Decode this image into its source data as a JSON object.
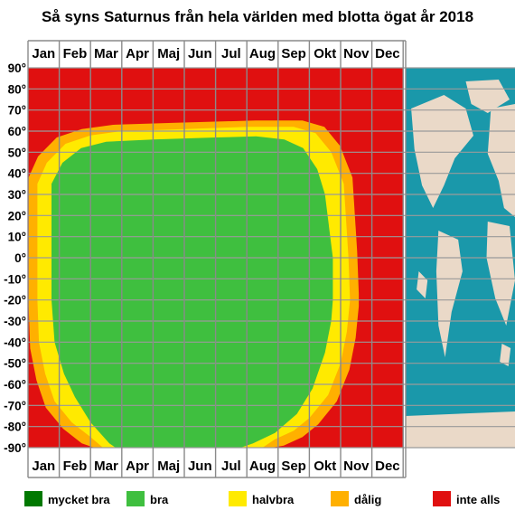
{
  "chart_data": {
    "type": "heatmap",
    "title": "Så syns Saturnus från hela världen med blotta ögat år 2018",
    "months": [
      "Jan",
      "Feb",
      "Mar",
      "Apr",
      "Maj",
      "Jun",
      "Jul",
      "Aug",
      "Sep",
      "Okt",
      "Nov",
      "Dec"
    ],
    "lat_ticks": [
      "90°",
      "80°",
      "70°",
      "60°",
      "50°",
      "40°",
      "30°",
      "20°",
      "10°",
      "0°",
      "-10°",
      "-20°",
      "-30°",
      "-40°",
      "-50°",
      "-60°",
      "-70°",
      "-80°",
      "-90°"
    ],
    "x_range_months": [
      1,
      13
    ],
    "y_range_lat": [
      -90,
      90
    ],
    "grid": true,
    "categories": [
      {
        "key": "mycket_bra",
        "label": "mycket bra",
        "color": "#007800"
      },
      {
        "key": "bra",
        "label": "bra",
        "color": "#3fbf3f"
      },
      {
        "key": "halvbra",
        "label": "halvbra",
        "color": "#ffea00"
      },
      {
        "key": "dalig",
        "label": "dålig",
        "color": "#ffb000"
      },
      {
        "key": "inte_alls",
        "label": "inte alls",
        "color": "#e01010"
      }
    ],
    "boundary_note_units": "month (1=Jan 1, 13=end of Dec) vs latitude in degrees",
    "boundaries": {
      "yellow_north": [
        [
          1.3,
          35
        ],
        [
          1.6,
          45
        ],
        [
          2.2,
          54
        ],
        [
          3,
          58
        ],
        [
          4,
          60
        ],
        [
          6,
          61
        ],
        [
          8,
          62
        ],
        [
          9.5,
          62
        ],
        [
          10.2,
          59
        ],
        [
          10.7,
          50
        ],
        [
          11.1,
          35
        ],
        [
          11.25,
          0
        ],
        [
          11.3,
          -20
        ]
      ],
      "green_north": [
        [
          1.75,
          35
        ],
        [
          2.1,
          45
        ],
        [
          2.7,
          52
        ],
        [
          3.5,
          55
        ],
        [
          5,
          56
        ],
        [
          7,
          57
        ],
        [
          8.3,
          57.5
        ],
        [
          9.2,
          56
        ],
        [
          9.8,
          52
        ],
        [
          10.25,
          42
        ],
        [
          10.5,
          30
        ],
        [
          10.75,
          0
        ],
        [
          10.75,
          -20
        ]
      ],
      "yellow_south": [
        [
          1.3,
          -20
        ],
        [
          1.35,
          -40
        ],
        [
          1.55,
          -55
        ],
        [
          1.85,
          -68
        ],
        [
          2.4,
          -78
        ],
        [
          3,
          -85
        ],
        [
          3.4,
          -90
        ],
        [
          8.5,
          -90
        ],
        [
          8.9,
          -86
        ],
        [
          9.5,
          -82
        ],
        [
          10,
          -76
        ],
        [
          10.6,
          -65
        ],
        [
          11.0,
          -50
        ],
        [
          11.2,
          -35
        ],
        [
          11.3,
          -20
        ]
      ],
      "green_south": [
        [
          1.75,
          -20
        ],
        [
          1.85,
          -40
        ],
        [
          2.15,
          -55
        ],
        [
          2.5,
          -66
        ],
        [
          3,
          -78
        ],
        [
          3.6,
          -88
        ],
        [
          3.8,
          -90
        ],
        [
          7.8,
          -90
        ],
        [
          8.2,
          -88
        ],
        [
          8.9,
          -83
        ],
        [
          9.6,
          -74
        ],
        [
          10.1,
          -62
        ],
        [
          10.5,
          -45
        ],
        [
          10.7,
          -30
        ],
        [
          10.75,
          -20
        ]
      ],
      "dalig_width_months": 0.28
    },
    "map": {
      "ocean_color": "#1a98aa",
      "land_color": "#ead9c8"
    }
  },
  "legend": {
    "mycket_bra": "mycket bra",
    "bra": "bra",
    "halvbra": "halvbra",
    "dalig": "dålig",
    "inte_alls": "inte alls"
  }
}
